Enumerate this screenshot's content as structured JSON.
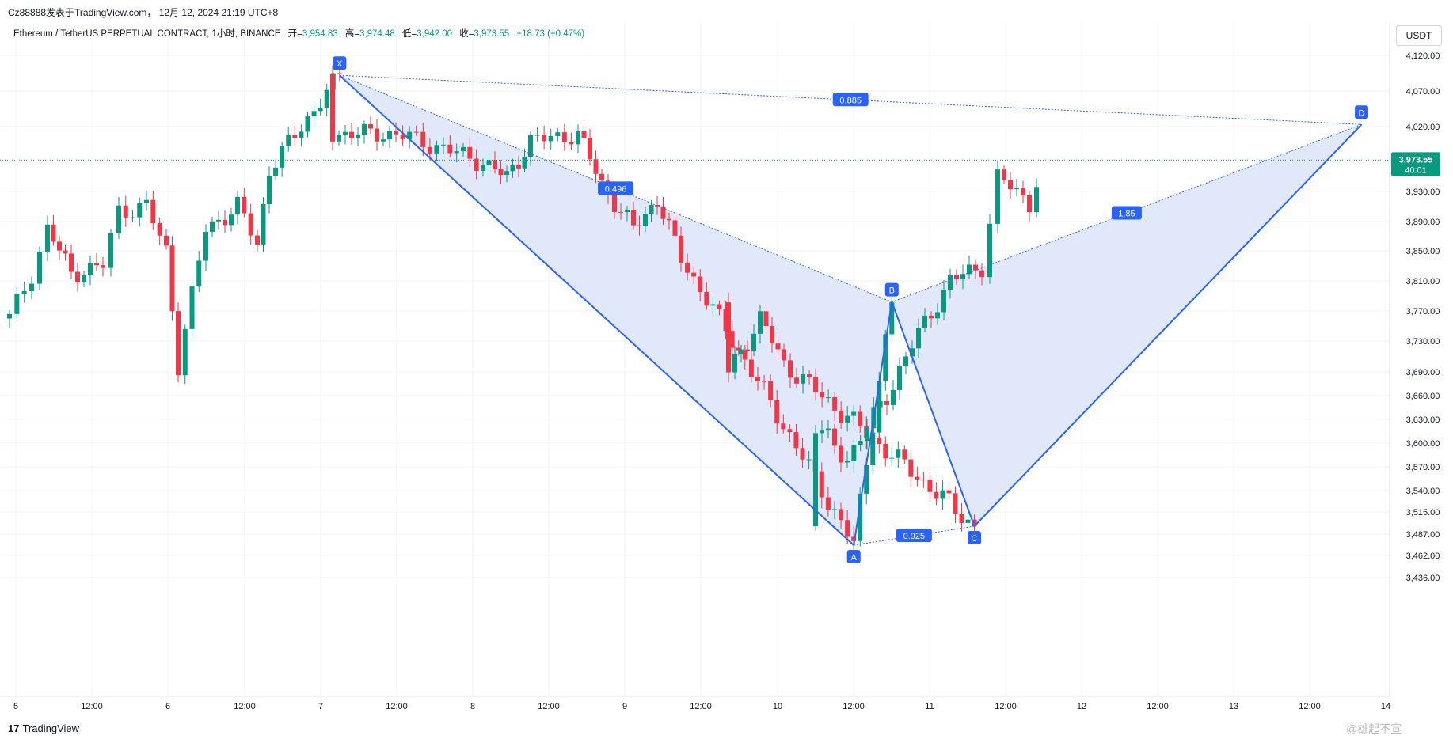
{
  "header": {
    "title": "Cz88888发表于TradingView.com， 12月 12, 2024 21:19 UTC+8"
  },
  "info_bar": {
    "symbol": "Ethereum / TetherUS PERPETUAL CONTRACT, 1小时, BINANCE",
    "open_label": "开=",
    "open_value": "3,954.83",
    "high_label": "高=",
    "high_value": "3,974.48",
    "low_label": "低=",
    "low_value": "3,942.00",
    "close_label": "收=",
    "close_value": "3,973.55",
    "change_value": "+18.73 (+0.47%)"
  },
  "currency_button": "USDT",
  "price_badge": {
    "price": "3,973.55",
    "countdown": "40:01"
  },
  "footer": {
    "logo_mark": "17",
    "logo_text": "TradingView"
  },
  "watermark": "@雄起不宣",
  "colors": {
    "up": "#089981",
    "down": "#f23645",
    "pattern_line": "#2962ff",
    "pattern_fill": "#dde5fa",
    "grid": "#f0f3fa"
  },
  "chart_data": {
    "type": "candlestick",
    "ylim": [
      3425,
      4140
    ],
    "y_ticks": [
      "4,120.00",
      "4,070.00",
      "4,020.00",
      "3,930.00",
      "3,890.00",
      "3,850.00",
      "3,810.00",
      "3,770.00",
      "3,730.00",
      "3,690.00",
      "3,660.00",
      "3,630.00",
      "3,600.00",
      "3,570.00",
      "3,540.00",
      "3,515.00",
      "3,487.00",
      "3,462.00",
      "3,436.00"
    ],
    "x_ticks": [
      "5",
      "12:00",
      "6",
      "12:00",
      "7",
      "12:00",
      "8",
      "12:00",
      "9",
      "12:00",
      "10",
      "12:00",
      "11",
      "12:00",
      "12",
      "12:00",
      "13",
      "12:00",
      "14"
    ],
    "last_price": 3973.55,
    "harmonic_pattern": {
      "points": [
        {
          "label": "X",
          "time": "12-07 03:00",
          "price": 4092
        },
        {
          "label": "A",
          "time": "12-10 12:00",
          "price": 3474
        },
        {
          "label": "B",
          "time": "12-10 18:00",
          "price": 3782
        },
        {
          "label": "C",
          "time": "12-11 07:00",
          "price": 3497
        },
        {
          "label": "D",
          "time": "12-13 20:00",
          "price": 4023
        }
      ],
      "ratios": [
        {
          "label": "0.496",
          "between": "XB"
        },
        {
          "label": "0.925",
          "between": "AC"
        },
        {
          "label": "1.85",
          "between": "BD"
        },
        {
          "label": "0.885",
          "between": "XD"
        }
      ]
    },
    "candles_ohlc": [
      [
        3750,
        3790,
        3700,
        3770
      ],
      [
        3770,
        3790,
        3710,
        3720
      ],
      [
        3720,
        3800,
        3690,
        3780
      ],
      [
        3780,
        3810,
        3760,
        3800
      ],
      [
        3800,
        3820,
        3780,
        3810
      ],
      [
        3810,
        3850,
        3800,
        3840
      ],
      [
        3840,
        3890,
        3830,
        3880
      ],
      [
        3880,
        3890,
        3830,
        3840
      ],
      [
        3840,
        3860,
        3820,
        3850
      ],
      [
        3850,
        3860,
        3820,
        3830
      ],
      [
        3830,
        3840,
        3790,
        3800
      ],
      [
        3800,
        3830,
        3790,
        3820
      ],
      [
        3820,
        3860,
        3810,
        3850
      ],
      [
        3850,
        3900,
        3840,
        3860
      ],
      [
        3860,
        3880,
        3810,
        3820
      ],
      [
        3820,
        3860,
        3810,
        3850
      ],
      [
        3850,
        3870,
        3830,
        3840
      ],
      [
        3840,
        3860,
        3830,
        3855
      ],
      [
        3855,
        3870,
        3840,
        3850
      ],
      [
        3850,
        3900,
        3840,
        3890
      ],
      [
        3890,
        3910,
        3860,
        3910
      ],
      [
        3910,
        3930,
        3900,
        3920
      ],
      [
        3920,
        3935,
        3900,
        3925
      ],
      [
        3925,
        3950,
        3910,
        3930
      ],
      [
        3930,
        3955,
        3905,
        3915
      ],
      [
        3915,
        3940,
        3900,
        3935
      ],
      [
        3935,
        3950,
        3920,
        3940
      ],
      [
        3940,
        3945,
        3880,
        3890
      ],
      [
        3890,
        3920,
        3880,
        3910
      ],
      [
        3910,
        3920,
        3860,
        3880
      ],
      [
        3880,
        3890,
        3840,
        3860
      ],
      [
        3860,
        3870,
        3780,
        3820
      ],
      [
        3820,
        3850,
        3620,
        3800
      ],
      [
        3800,
        3840,
        3750,
        3780
      ],
      [
        3780,
        3830,
        3770,
        3830
      ],
      [
        3830,
        3870,
        3810,
        3860
      ],
      [
        3860,
        3880,
        3850,
        3870
      ],
      [
        3870,
        3880,
        3840,
        3850
      ],
      [
        3850,
        3900,
        3840,
        3890
      ],
      [
        3890,
        3930,
        3880,
        3920
      ],
      [
        3920,
        3935,
        3880,
        3890
      ],
      [
        3890,
        3920,
        3880,
        3910
      ],
      [
        3910,
        3930,
        3890,
        3900
      ],
      [
        3900,
        3920,
        3880,
        3895
      ],
      [
        3895,
        3900,
        3860,
        3870
      ],
      [
        3870,
        3890,
        3850,
        3860
      ],
      [
        3860,
        3880,
        3840,
        3850
      ],
      [
        3850,
        3880,
        3845,
        3875
      ],
      [
        3875,
        3890,
        3860,
        3870
      ],
      [
        3870,
        3890,
        3850,
        3860
      ],
      [
        3860,
        3960,
        3850,
        3940
      ],
      [
        3940,
        3980,
        3930,
        3970
      ],
      [
        3970,
        3990,
        3960,
        3980
      ],
      [
        3980,
        4030,
        3970,
        4020
      ],
      [
        4020,
        4060,
        4010,
        4050
      ],
      [
        4050,
        4080,
        4040,
        4070
      ],
      [
        4070,
        4092,
        4040,
        4055
      ],
      [
        4055,
        4070,
        4000,
        4020
      ],
      [
        4020,
        4040,
        4010,
        4030
      ],
      [
        4030,
        4040,
        3990,
        4010
      ]
    ]
  }
}
